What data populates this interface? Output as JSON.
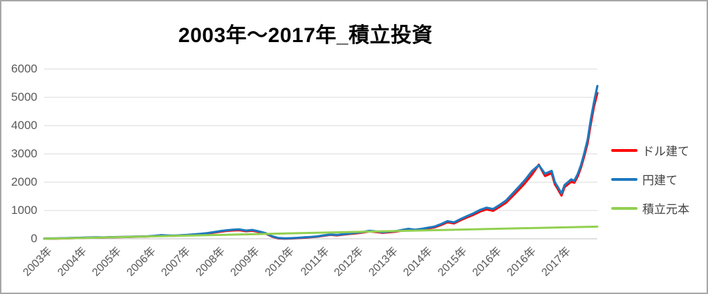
{
  "title": "2003年～2017年_積立投資",
  "colors": {
    "usd_line": "#FF0000",
    "jpy_line": "#1E78BE",
    "principal_line": "#92D050",
    "axis_text": "#595959",
    "gridline": "#D9D9D9",
    "axis_line": "#BFBFBF",
    "frame_border": "#A6A6A6",
    "legend_text": "#404040",
    "title_text": "#000000"
  },
  "chart_data": {
    "type": "line",
    "title": "2003年～2017年_積立投資",
    "xlabel": "",
    "ylabel": "",
    "ylim": [
      0,
      6000
    ],
    "y_ticks": [
      0,
      1000,
      2000,
      3000,
      4000,
      5000,
      6000
    ],
    "x_range_years": [
      2003.0,
      2017.17
    ],
    "x_tick_labels": [
      "2003年",
      "2004年",
      "2005年",
      "2006年",
      "2007年",
      "2008年",
      "2009年",
      "2010年",
      "2011年",
      "2012年",
      "2013年",
      "2014年",
      "2015年",
      "2016年",
      "2016年",
      "2017年"
    ],
    "grid": "horizontal-only",
    "legend_position": "right",
    "series": [
      {
        "name": "ドル建て",
        "color": "#FF0000",
        "points": [
          [
            2003.0,
            2
          ],
          [
            2003.17,
            6
          ],
          [
            2003.33,
            10
          ],
          [
            2003.5,
            15
          ],
          [
            2003.67,
            22
          ],
          [
            2003.83,
            28
          ],
          [
            2004.0,
            35
          ],
          [
            2004.17,
            42
          ],
          [
            2004.33,
            46
          ],
          [
            2004.5,
            45
          ],
          [
            2004.67,
            52
          ],
          [
            2004.83,
            57
          ],
          [
            2005.0,
            62
          ],
          [
            2005.17,
            66
          ],
          [
            2005.33,
            72
          ],
          [
            2005.5,
            76
          ],
          [
            2005.67,
            85
          ],
          [
            2005.83,
            100
          ],
          [
            2006.0,
            122
          ],
          [
            2006.17,
            112
          ],
          [
            2006.33,
            105
          ],
          [
            2006.5,
            118
          ],
          [
            2006.67,
            132
          ],
          [
            2006.83,
            146
          ],
          [
            2007.0,
            165
          ],
          [
            2007.17,
            188
          ],
          [
            2007.33,
            215
          ],
          [
            2007.5,
            250
          ],
          [
            2007.67,
            280
          ],
          [
            2007.83,
            295
          ],
          [
            2008.0,
            305
          ],
          [
            2008.17,
            268
          ],
          [
            2008.33,
            285
          ],
          [
            2008.5,
            240
          ],
          [
            2008.67,
            185
          ],
          [
            2008.83,
            80
          ],
          [
            2009.0,
            15
          ],
          [
            2009.17,
            5
          ],
          [
            2009.33,
            12
          ],
          [
            2009.5,
            25
          ],
          [
            2009.67,
            40
          ],
          [
            2009.83,
            55
          ],
          [
            2010.0,
            75
          ],
          [
            2010.17,
            108
          ],
          [
            2010.33,
            138
          ],
          [
            2010.5,
            122
          ],
          [
            2010.67,
            148
          ],
          [
            2010.83,
            172
          ],
          [
            2011.0,
            195
          ],
          [
            2011.17,
            225
          ],
          [
            2011.33,
            262
          ],
          [
            2011.5,
            242
          ],
          [
            2011.67,
            212
          ],
          [
            2011.83,
            232
          ],
          [
            2012.0,
            252
          ],
          [
            2012.17,
            292
          ],
          [
            2012.33,
            330
          ],
          [
            2012.5,
            300
          ],
          [
            2012.67,
            330
          ],
          [
            2012.83,
            368
          ],
          [
            2013.0,
            405
          ],
          [
            2013.17,
            490
          ],
          [
            2013.33,
            585
          ],
          [
            2013.5,
            545
          ],
          [
            2013.67,
            660
          ],
          [
            2013.83,
            755
          ],
          [
            2014.0,
            850
          ],
          [
            2014.17,
            965
          ],
          [
            2014.33,
            1040
          ],
          [
            2014.5,
            990
          ],
          [
            2014.67,
            1135
          ],
          [
            2014.83,
            1275
          ],
          [
            2015.0,
            1510
          ],
          [
            2015.17,
            1750
          ],
          [
            2015.33,
            1990
          ],
          [
            2015.5,
            2280
          ],
          [
            2015.67,
            2620
          ],
          [
            2015.83,
            2220
          ],
          [
            2016.0,
            2320
          ],
          [
            2016.08,
            1930
          ],
          [
            2016.17,
            1730
          ],
          [
            2016.25,
            1530
          ],
          [
            2016.33,
            1830
          ],
          [
            2016.5,
            2020
          ],
          [
            2016.58,
            1980
          ],
          [
            2016.67,
            2220
          ],
          [
            2016.75,
            2520
          ],
          [
            2016.83,
            2900
          ],
          [
            2016.92,
            3380
          ],
          [
            2017.0,
            4050
          ],
          [
            2017.08,
            4650
          ],
          [
            2017.17,
            5150
          ]
        ]
      },
      {
        "name": "円建て",
        "color": "#1E78BE",
        "points": [
          [
            2003.0,
            5
          ],
          [
            2003.17,
            9
          ],
          [
            2003.33,
            14
          ],
          [
            2003.5,
            19
          ],
          [
            2003.67,
            26
          ],
          [
            2003.83,
            32
          ],
          [
            2004.0,
            40
          ],
          [
            2004.17,
            46
          ],
          [
            2004.33,
            51
          ],
          [
            2004.5,
            49
          ],
          [
            2004.67,
            56
          ],
          [
            2004.83,
            61
          ],
          [
            2005.0,
            66
          ],
          [
            2005.17,
            71
          ],
          [
            2005.33,
            76
          ],
          [
            2005.5,
            81
          ],
          [
            2005.67,
            91
          ],
          [
            2005.83,
            106
          ],
          [
            2006.0,
            130
          ],
          [
            2006.17,
            118
          ],
          [
            2006.33,
            111
          ],
          [
            2006.5,
            125
          ],
          [
            2006.67,
            140
          ],
          [
            2006.83,
            155
          ],
          [
            2007.0,
            176
          ],
          [
            2007.17,
            200
          ],
          [
            2007.33,
            231
          ],
          [
            2007.5,
            270
          ],
          [
            2007.67,
            301
          ],
          [
            2007.83,
            320
          ],
          [
            2008.0,
            331
          ],
          [
            2008.17,
            290
          ],
          [
            2008.33,
            311
          ],
          [
            2008.5,
            261
          ],
          [
            2008.67,
            200
          ],
          [
            2008.83,
            92
          ],
          [
            2009.0,
            26
          ],
          [
            2009.17,
            15
          ],
          [
            2009.33,
            22
          ],
          [
            2009.5,
            35
          ],
          [
            2009.67,
            51
          ],
          [
            2009.83,
            66
          ],
          [
            2010.0,
            86
          ],
          [
            2010.17,
            121
          ],
          [
            2010.33,
            150
          ],
          [
            2010.5,
            136
          ],
          [
            2010.67,
            161
          ],
          [
            2010.83,
            186
          ],
          [
            2011.0,
            211
          ],
          [
            2011.17,
            241
          ],
          [
            2011.33,
            280
          ],
          [
            2011.5,
            261
          ],
          [
            2011.67,
            231
          ],
          [
            2011.83,
            251
          ],
          [
            2012.0,
            271
          ],
          [
            2012.17,
            311
          ],
          [
            2012.33,
            351
          ],
          [
            2012.5,
            321
          ],
          [
            2012.67,
            351
          ],
          [
            2012.83,
            391
          ],
          [
            2013.0,
            431
          ],
          [
            2013.17,
            521
          ],
          [
            2013.33,
            621
          ],
          [
            2013.5,
            581
          ],
          [
            2013.67,
            701
          ],
          [
            2013.83,
            801
          ],
          [
            2014.0,
            901
          ],
          [
            2014.17,
            1021
          ],
          [
            2014.33,
            1101
          ],
          [
            2014.5,
            1051
          ],
          [
            2014.67,
            1201
          ],
          [
            2014.83,
            1351
          ],
          [
            2015.0,
            1601
          ],
          [
            2015.17,
            1851
          ],
          [
            2015.33,
            2101
          ],
          [
            2015.5,
            2401
          ],
          [
            2015.67,
            2601
          ],
          [
            2015.83,
            2301
          ],
          [
            2016.0,
            2401
          ],
          [
            2016.08,
            2001
          ],
          [
            2016.17,
            1801
          ],
          [
            2016.25,
            1601
          ],
          [
            2016.33,
            1901
          ],
          [
            2016.5,
            2101
          ],
          [
            2016.58,
            2051
          ],
          [
            2016.67,
            2301
          ],
          [
            2016.75,
            2601
          ],
          [
            2016.83,
            3001
          ],
          [
            2016.92,
            3501
          ],
          [
            2017.0,
            4201
          ],
          [
            2017.08,
            4801
          ],
          [
            2017.17,
            5400
          ]
        ]
      },
      {
        "name": "積立元本",
        "color": "#92D050",
        "points": [
          [
            2003.0,
            0
          ],
          [
            2005.0,
            62
          ],
          [
            2007.0,
            122
          ],
          [
            2009.0,
            183
          ],
          [
            2011.0,
            243
          ],
          [
            2013.0,
            304
          ],
          [
            2015.0,
            365
          ],
          [
            2017.17,
            430
          ]
        ]
      }
    ]
  },
  "legend": {
    "items": [
      {
        "id": "usd",
        "label": "ドル建て"
      },
      {
        "id": "jpy",
        "label": "円建て"
      },
      {
        "id": "principal",
        "label": "積立元本"
      }
    ]
  }
}
